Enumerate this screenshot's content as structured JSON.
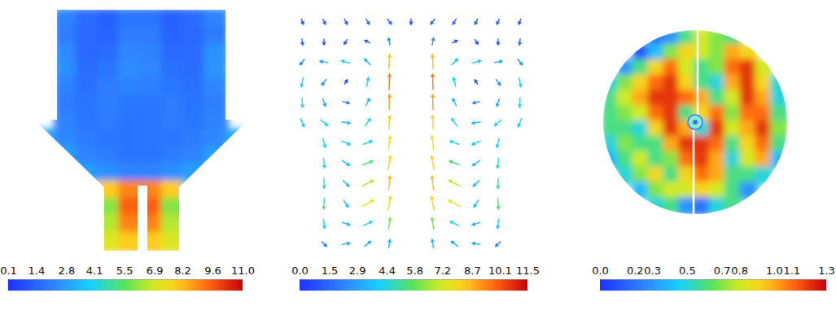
{
  "chart_data": [
    {
      "type": "heatmap",
      "cells": [
        [
          null,
          2.2,
          1.6,
          1.3,
          1.8,
          1.8,
          1.3,
          1.6,
          2.2,
          null
        ],
        [
          null,
          2.0,
          1.5,
          1.4,
          2.0,
          2.0,
          1.4,
          1.5,
          2.0,
          null
        ],
        [
          null,
          2.4,
          1.5,
          1.6,
          2.3,
          2.2,
          1.5,
          1.6,
          2.5,
          null
        ],
        [
          null,
          2.5,
          1.6,
          1.8,
          2.4,
          2.3,
          1.7,
          1.6,
          2.6,
          null
        ],
        [
          null,
          2.2,
          1.7,
          2.0,
          2.2,
          2.1,
          1.9,
          1.7,
          2.3,
          null
        ],
        [
          null,
          2.0,
          1.8,
          2.1,
          1.9,
          1.9,
          2.0,
          1.8,
          2.1,
          null
        ],
        [
          null,
          2.2,
          1.9,
          2.0,
          1.8,
          1.8,
          2.0,
          1.9,
          2.2,
          null
        ],
        [
          3.0,
          2.3,
          2.0,
          1.9,
          1.8,
          1.8,
          1.9,
          2.0,
          2.3,
          3.0
        ],
        [
          null,
          2.8,
          2.2,
          2.0,
          1.8,
          1.8,
          2.0,
          2.2,
          2.8,
          null
        ],
        [
          null,
          3.5,
          2.8,
          2.5,
          2.2,
          2.2,
          2.5,
          2.8,
          3.5,
          null
        ],
        [
          null,
          null,
          3.8,
          8.0,
          9.0,
          9.0,
          8.0,
          3.8,
          null,
          null
        ],
        [
          null,
          null,
          null,
          6.0,
          9.5,
          9.5,
          6.0,
          null,
          null,
          null
        ],
        [
          null,
          null,
          null,
          6.5,
          9.0,
          9.0,
          6.5,
          null,
          null,
          null
        ],
        [
          null,
          null,
          null,
          7.0,
          8.0,
          8.0,
          7.0,
          null,
          null,
          null
        ]
      ],
      "colorbar": {
        "range": [
          0.1,
          11
        ],
        "ticks": [
          0.1,
          1.4,
          2.8,
          4.1,
          5.5,
          6.9,
          8.2,
          9.6,
          {
            "value": 11,
            "label": "11.0"
          }
        ]
      }
    },
    {
      "type": "vector",
      "u": [
        [
          0.4,
          0.5,
          0.6,
          0.8,
          1.0,
          0.0,
          -1.0,
          -0.8,
          -0.6,
          -0.5,
          -0.4
        ],
        [
          0.2,
          0.0,
          -0.5,
          -1.0,
          -0.5,
          null,
          0.5,
          1.0,
          0.5,
          0.0,
          -0.2
        ],
        [
          -1.5,
          -3.0,
          -3.5,
          -2.5,
          0.5,
          null,
          -0.5,
          2.5,
          3.5,
          3.0,
          1.5
        ],
        [
          -0.8,
          -1.5,
          0.3,
          1.0,
          0.3,
          null,
          -0.3,
          -1.0,
          -0.3,
          1.5,
          0.8
        ],
        [
          0.2,
          1.0,
          2.0,
          1.5,
          0.2,
          null,
          -0.2,
          -1.5,
          -2.0,
          -1.0,
          -0.2
        ],
        [
          1.5,
          3.0,
          3.5,
          2.5,
          0.5,
          null,
          -0.5,
          -2.5,
          -3.5,
          -3.0,
          -1.5
        ],
        [
          null,
          1.0,
          3.5,
          4.0,
          1.0,
          null,
          -1.0,
          -4.0,
          -3.5,
          -1.0,
          null
        ],
        [
          null,
          0.5,
          3.0,
          5.0,
          1.5,
          null,
          -1.5,
          -5.0,
          -3.0,
          -0.5,
          null
        ],
        [
          null,
          0.2,
          2.5,
          6.0,
          1.0,
          null,
          -1.0,
          -6.0,
          -2.5,
          -0.2,
          null
        ],
        [
          null,
          -0.3,
          2.0,
          6.5,
          1.5,
          null,
          -1.5,
          -6.5,
          -2.0,
          0.3,
          null
        ],
        [
          null,
          0.5,
          3.0,
          4.0,
          1.0,
          null,
          -1.0,
          -4.0,
          -3.0,
          -0.5,
          null
        ],
        [
          null,
          1.5,
          3.0,
          2.5,
          0.5,
          null,
          -0.5,
          -2.5,
          -3.0,
          -1.5,
          null
        ]
      ],
      "v": [
        [
          -1.0,
          -1.1,
          -1.2,
          -1.3,
          -1.2,
          -0.8,
          -1.2,
          -1.3,
          -1.2,
          -1.1,
          -1.0
        ],
        [
          -1.5,
          -1.2,
          -0.8,
          0.5,
          2.5,
          null,
          2.5,
          0.5,
          -0.8,
          -1.2,
          -1.5
        ],
        [
          -2.0,
          0.5,
          1.0,
          2.5,
          8.5,
          null,
          8.5,
          2.5,
          1.0,
          0.5,
          -2.0
        ],
        [
          -4.0,
          -2.0,
          0.5,
          4.0,
          9.5,
          null,
          9.5,
          4.0,
          0.5,
          -2.0,
          -4.0
        ],
        [
          -4.5,
          -3.0,
          -0.5,
          3.0,
          9.0,
          null,
          9.0,
          3.0,
          -0.5,
          -3.0,
          -4.5
        ],
        [
          -3.5,
          -2.5,
          -0.5,
          3.5,
          8.0,
          null,
          8.0,
          3.5,
          -0.5,
          -2.5,
          -3.5
        ],
        [
          null,
          -4.0,
          -1.5,
          1.5,
          7.5,
          null,
          7.5,
          1.5,
          -1.5,
          -4.0,
          null
        ],
        [
          null,
          -4.5,
          -2.0,
          2.0,
          8.0,
          null,
          8.0,
          2.0,
          -2.0,
          -4.5,
          null
        ],
        [
          null,
          -5.0,
          -2.5,
          3.0,
          8.5,
          null,
          8.5,
          3.0,
          -2.5,
          -5.0,
          null
        ],
        [
          null,
          -5.5,
          -3.0,
          3.5,
          8.0,
          null,
          8.0,
          3.5,
          -3.0,
          -5.5,
          null
        ],
        [
          null,
          -4.0,
          -1.0,
          2.0,
          6.0,
          null,
          6.0,
          2.0,
          -1.0,
          -4.0,
          null
        ],
        [
          null,
          -1.5,
          0.5,
          2.0,
          3.5,
          null,
          3.5,
          2.0,
          0.5,
          -1.5,
          null
        ]
      ],
      "colorbar": {
        "range": [
          0,
          11.5
        ],
        "ticks": [
          {
            "value": 0,
            "label": "0.0"
          },
          1.5,
          2.9,
          4.4,
          5.8,
          7.2,
          8.7,
          10.1,
          11.5
        ]
      }
    },
    {
      "type": "heatmap",
      "cells": [
        [
          null,
          null,
          null,
          0.2,
          0.3,
          0.6,
          0.8,
          0.7,
          0.6,
          null,
          null,
          null
        ],
        [
          null,
          null,
          0.1,
          0.4,
          0.7,
          0.9,
          0.8,
          0.7,
          1.0,
          0.9,
          null,
          null
        ],
        [
          null,
          0.3,
          0.6,
          0.9,
          1.1,
          0.8,
          0.6,
          0.7,
          1.1,
          1.2,
          0.8,
          null
        ],
        [
          0.5,
          0.7,
          0.9,
          1.1,
          1.2,
          0.9,
          0.6,
          0.5,
          1.0,
          1.2,
          0.9,
          0.5
        ],
        [
          0.6,
          0.8,
          1.0,
          1.2,
          1.2,
          1.1,
          1.0,
          0.6,
          0.8,
          1.2,
          1.0,
          0.5
        ],
        [
          0.6,
          0.7,
          0.8,
          1.1,
          1.2,
          0.6,
          0.9,
          1.1,
          0.7,
          1.1,
          1.1,
          0.6
        ],
        [
          0.6,
          0.6,
          0.5,
          0.9,
          1.2,
          1.0,
          0.5,
          1.2,
          0.8,
          1.0,
          1.2,
          0.7
        ],
        [
          0.5,
          0.7,
          0.6,
          0.6,
          1.0,
          1.2,
          1.2,
          1.1,
          0.6,
          0.9,
          1.1,
          0.6
        ],
        [
          0.4,
          0.6,
          0.8,
          0.6,
          0.7,
          1.1,
          1.2,
          1.0,
          0.5,
          0.8,
          1.0,
          0.4
        ],
        [
          null,
          0.5,
          0.7,
          0.9,
          0.6,
          0.9,
          1.1,
          1.0,
          0.6,
          0.6,
          0.5,
          null
        ],
        [
          null,
          null,
          0.4,
          0.7,
          0.8,
          0.8,
          0.9,
          0.8,
          0.6,
          0.3,
          null,
          null
        ],
        [
          null,
          null,
          null,
          0.5,
          0.6,
          0.3,
          0.2,
          0.5,
          0.6,
          null,
          null,
          null
        ]
      ],
      "colorbar": {
        "range": [
          0,
          1.3
        ],
        "ticks": [
          {
            "value": 0,
            "label": "0.0"
          },
          0.2,
          0.3,
          0.5,
          0.7,
          0.8,
          {
            "value": 1,
            "label": "1.0"
          },
          1.1,
          1.3
        ]
      }
    }
  ]
}
